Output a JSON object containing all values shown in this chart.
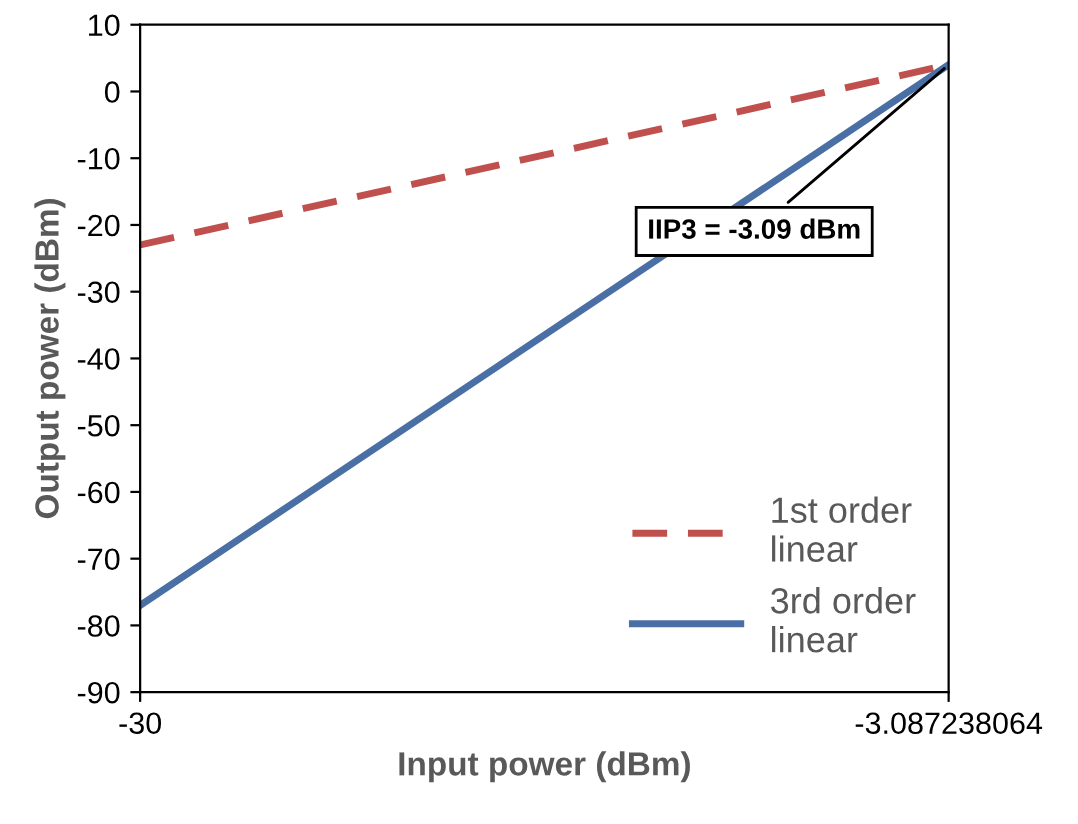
{
  "chart_data": {
    "type": "line",
    "xlabel": "Input power (dBm)",
    "ylabel": "Output power (dBm)",
    "xlim": [
      -30,
      -3.087238064
    ],
    "xticks": [
      -30,
      -3.087238064
    ],
    "ylim": [
      -90,
      10
    ],
    "yticks": [
      -90,
      -80,
      -70,
      -60,
      -50,
      -40,
      -30,
      -20,
      -10,
      0,
      10
    ],
    "x": [
      -30,
      -3.087238064
    ],
    "series": [
      {
        "name": "1st order\nlinear",
        "color": "#c0504d",
        "values": [
          -23,
          4
        ],
        "line_style": "dashed"
      },
      {
        "name": "3rd order\nlinear",
        "color": "#4a6fa5",
        "values": [
          -77,
          4
        ],
        "line_style": "solid"
      }
    ],
    "annotations": [
      {
        "text": "IIP3 = -3.09 dBm",
        "x": -3.087238064,
        "y": 4
      }
    ],
    "legend": "bottom right",
    "grid": false
  }
}
